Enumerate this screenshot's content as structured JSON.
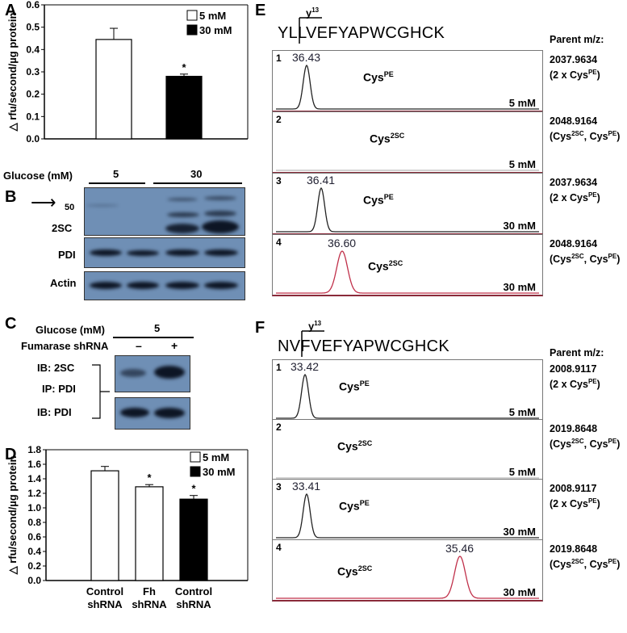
{
  "panels": {
    "A": "A",
    "B": "B",
    "C": "C",
    "D": "D",
    "E": "E",
    "F": "F"
  },
  "panel_a": {
    "ylabel": "△ rfu/second/µg protein",
    "legend": [
      "5 mM",
      "30 mM"
    ],
    "significance": "*",
    "chart_data": {
      "type": "bar",
      "categories": [
        "5 mM",
        "30 mM"
      ],
      "values": [
        0.445,
        0.28
      ],
      "errors": [
        0.05,
        0.01
      ],
      "ylim": [
        0,
        0.6
      ],
      "yticks": [
        "0.0",
        "0.1",
        "0.2",
        "0.3",
        "0.4",
        "0.5",
        "0.6"
      ],
      "colors": [
        "#ffffff",
        "#000000"
      ]
    }
  },
  "panel_b": {
    "glucose_label": "Glucose (mM)",
    "glucose_5": "5",
    "glucose_30": "30",
    "marker": "50",
    "rows": [
      "2SC",
      "PDI",
      "Actin"
    ]
  },
  "panel_c": {
    "glucose_label": "Glucose (mM)",
    "glucose_5": "5",
    "shrna_label": "Fumarase shRNA",
    "minus": "–",
    "plus": "+",
    "ib_2sc": "IB: 2SC",
    "ip_pdi": "IP: PDI",
    "ib_pdi": "IB: PDI"
  },
  "panel_d": {
    "ylabel": "△ rfu/second/µg protein",
    "legend": [
      "5 mM",
      "30 mM"
    ],
    "significance": "*",
    "xlabels": [
      [
        "Control",
        "shRNA"
      ],
      [
        "Fh",
        "shRNA"
      ],
      [
        "Control",
        "shRNA"
      ]
    ],
    "chart_data": {
      "type": "bar",
      "categories": [
        "Control shRNA",
        "Fh shRNA",
        "Control shRNA"
      ],
      "values": [
        1.51,
        1.29,
        1.12
      ],
      "errors": [
        0.06,
        0.03,
        0.05
      ],
      "ylim": [
        0,
        1.8
      ],
      "yticks": [
        "0.0",
        "0.2",
        "0.4",
        "0.6",
        "0.8",
        "1.0",
        "1.2",
        "1.4",
        "1.6",
        "1.8"
      ],
      "colors": [
        "#ffffff",
        "#ffffff",
        "#000000"
      ],
      "significant": [
        false,
        true,
        true
      ]
    }
  },
  "panel_e": {
    "peptide": "YLLVEFYAPWCGHCK",
    "peptide_a": "YL",
    "peptide_b": "LVEFYAPWCGHCK",
    "ion": "y",
    "ion_sup": "13",
    "parent_header": "Parent m/z:",
    "traces": [
      {
        "n": "1",
        "peak": "36.43",
        "cys": "Cys",
        "cys_sup": "PE",
        "mm": "5 mM",
        "mz": "2037.9634",
        "mod": "(2 x Cys",
        "mod_sup": "PE",
        "mod_end": ")"
      },
      {
        "n": "2",
        "peak": "",
        "cys": "Cys",
        "cys_sup": "2SC",
        "mm": "5 mM",
        "mz": "2048.9164",
        "mod": "(Cys",
        "mod_sup": "2SC",
        "mod_mid": ", Cys",
        "mod_sup2": "PE",
        "mod_end": ")"
      },
      {
        "n": "3",
        "peak": "36.41",
        "cys": "Cys",
        "cys_sup": "PE",
        "mm": "30 mM",
        "mz": "2037.9634",
        "mod": "(2 x Cys",
        "mod_sup": "PE",
        "mod_end": ")"
      },
      {
        "n": "4",
        "peak": "36.60",
        "cys": "Cys",
        "cys_sup": "2SC",
        "mm": "30 mM",
        "mz": "2048.9164",
        "mod": "(Cys",
        "mod_sup": "2SC",
        "mod_mid": ", Cys",
        "mod_sup2": "PE",
        "mod_end": ")"
      }
    ]
  },
  "panel_f": {
    "peptide": "NVFVEFYAPWCGHCK",
    "peptide_a": "NV",
    "peptide_b": "FVEFYAPWCGHCK",
    "ion": "y",
    "ion_sup": "13",
    "parent_header": "Parent m/z:",
    "traces": [
      {
        "n": "1",
        "peak": "33.42",
        "cys": "Cys",
        "cys_sup": "PE",
        "mm": "5 mM",
        "mz": "2008.9117",
        "mod": "(2 x Cys",
        "mod_sup": "PE",
        "mod_end": ")"
      },
      {
        "n": "2",
        "peak": "",
        "cys": "Cys",
        "cys_sup": "2SC",
        "mm": "5 mM",
        "mz": "2019.8648",
        "mod": "(Cys",
        "mod_sup": "2SC",
        "mod_mid": ", Cys",
        "mod_sup2": "PE",
        "mod_end": ")"
      },
      {
        "n": "3",
        "peak": "33.41",
        "cys": "Cys",
        "cys_sup": "PE",
        "mm": "30 mM",
        "mz": "2008.9117",
        "mod": "(2 x Cys",
        "mod_sup": "PE",
        "mod_end": ")"
      },
      {
        "n": "4",
        "peak": "35.46",
        "cys": "Cys",
        "cys_sup": "2SC",
        "mm": "30 mM",
        "mz": "2019.8648",
        "mod": "(Cys",
        "mod_sup": "2SC",
        "mod_mid": ", Cys",
        "mod_sup2": "PE",
        "mod_end": ")"
      }
    ]
  },
  "colors": {
    "trace_pe": "#222222",
    "trace_2sc": "#c0304a",
    "panel_border": "#8a2a3a",
    "blot_bg": "#6f8fb5"
  }
}
